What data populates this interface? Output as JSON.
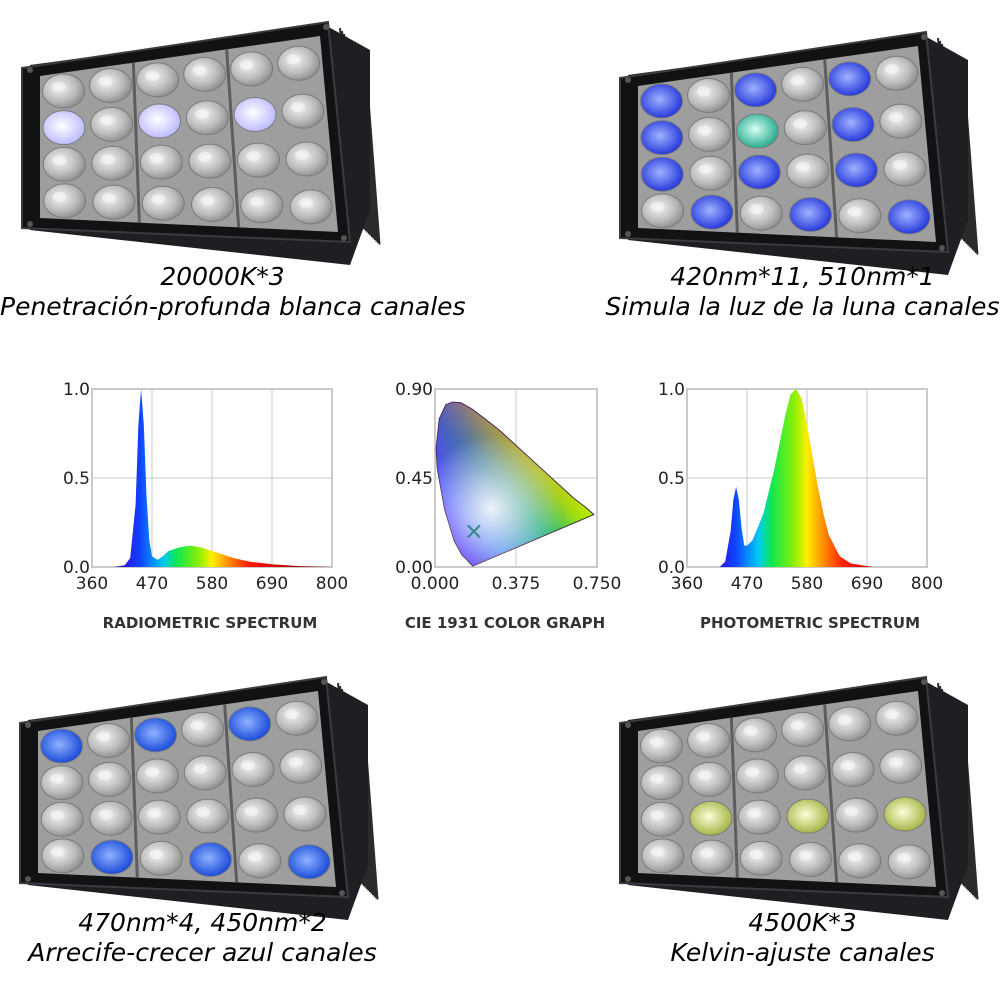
{
  "panels": [
    {
      "line1": "20000K*3",
      "line2": "Penetración-profunda blanca canales"
    },
    {
      "line1": "420nm*11, 510nm*1",
      "line2": "Simula la luz de la luna canales"
    },
    {
      "line1": "470nm*4, 450nm*2",
      "line2": "Arrecife-crecer azul canales"
    },
    {
      "line1": "4500K*3",
      "line2": "Kelvin-ajuste canales"
    }
  ],
  "chart_data": [
    {
      "type": "area",
      "title": "RADIOMETRIC SPECTRUM",
      "xlabel": "",
      "ylabel": "",
      "xlim": [
        360,
        800
      ],
      "ylim": [
        0,
        1.0
      ],
      "xticks": [
        "360",
        "470",
        "580",
        "690",
        "800"
      ],
      "yticks": [
        "0.0",
        "0.5",
        "1.0"
      ],
      "grid": true,
      "x": [
        360,
        400,
        420,
        430,
        440,
        445,
        450,
        455,
        460,
        465,
        470,
        480,
        490,
        500,
        520,
        540,
        560,
        580,
        600,
        620,
        650,
        690,
        740,
        800
      ],
      "y": [
        0,
        0,
        0.01,
        0.05,
        0.35,
        0.8,
        1.0,
        0.8,
        0.4,
        0.15,
        0.06,
        0.04,
        0.06,
        0.09,
        0.11,
        0.12,
        0.11,
        0.09,
        0.07,
        0.05,
        0.03,
        0.015,
        0.005,
        0
      ]
    },
    {
      "type": "scatter",
      "title": "CIE 1931 COLOR GRAPH",
      "xlabel": "",
      "ylabel": "",
      "xlim": [
        0,
        0.75
      ],
      "ylim": [
        0,
        0.9
      ],
      "xticks": [
        "0.000",
        "0.375",
        "0.750"
      ],
      "yticks": [
        "0.00",
        "0.45",
        "0.90"
      ],
      "grid": true,
      "x": [
        0.18
      ],
      "y": [
        0.18
      ]
    },
    {
      "type": "area",
      "title": "PHOTOMETRIC SPECTRUM",
      "xlabel": "",
      "ylabel": "",
      "xlim": [
        360,
        800
      ],
      "ylim": [
        0,
        1.0
      ],
      "xticks": [
        "360",
        "470",
        "580",
        "690",
        "800"
      ],
      "yticks": [
        "0.0",
        "0.5",
        "1.0"
      ],
      "grid": true,
      "x": [
        360,
        420,
        430,
        440,
        445,
        450,
        455,
        460,
        465,
        470,
        480,
        500,
        520,
        540,
        550,
        560,
        570,
        580,
        590,
        600,
        610,
        620,
        640,
        660,
        700,
        800
      ],
      "y": [
        0,
        0,
        0.03,
        0.2,
        0.38,
        0.45,
        0.38,
        0.22,
        0.12,
        0.12,
        0.15,
        0.3,
        0.55,
        0.85,
        0.97,
        1.0,
        0.95,
        0.8,
        0.62,
        0.45,
        0.3,
        0.18,
        0.06,
        0.02,
        0,
        0
      ]
    }
  ]
}
